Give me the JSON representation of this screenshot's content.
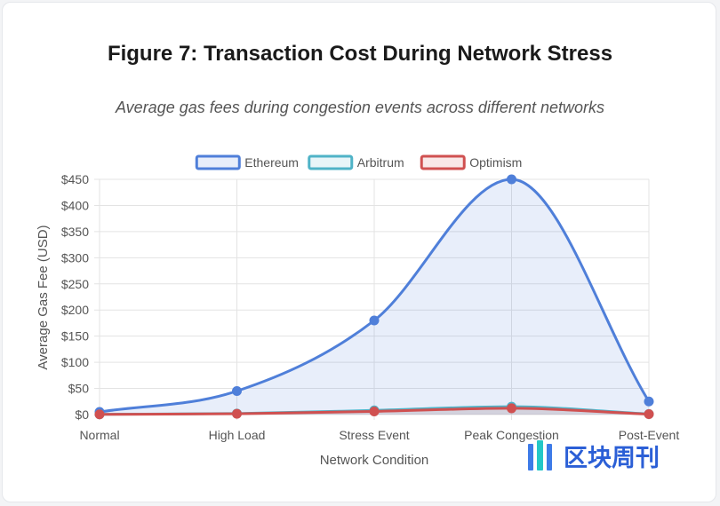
{
  "title": "Figure 7: Transaction Cost During Network Stress",
  "subtitle": "Average gas fees during congestion events across different networks",
  "watermark": {
    "text": "区块周刊",
    "logo_icon": "blockweekly-logo-icon"
  },
  "chart_data": {
    "type": "area",
    "categories": [
      "Normal",
      "High Load",
      "Stress Event",
      "Peak Congestion",
      "Post-Event"
    ],
    "series": [
      {
        "name": "Ethereum",
        "values": [
          5,
          45,
          180,
          450,
          25
        ],
        "color": "#4f7fd9",
        "fill": "rgba(79,127,217,0.13)"
      },
      {
        "name": "Arbitrum",
        "values": [
          0.5,
          2,
          8,
          15,
          1
        ],
        "color": "#4fb3c7",
        "fill": "rgba(79,179,199,0.13)"
      },
      {
        "name": "Optimism",
        "values": [
          0.4,
          1.5,
          6,
          12,
          0.8
        ],
        "color": "#d05050",
        "fill": "rgba(208,80,80,0.13)"
      }
    ],
    "xlabel": "Network Condition",
    "ylabel": "Average Gas Fee (USD)",
    "yticks": [
      "$0",
      "$50",
      "$100",
      "$150",
      "$200",
      "$250",
      "$300",
      "$350",
      "$400",
      "$450"
    ],
    "ylim": [
      0,
      450
    ],
    "grid": true,
    "legend": "top-center"
  }
}
